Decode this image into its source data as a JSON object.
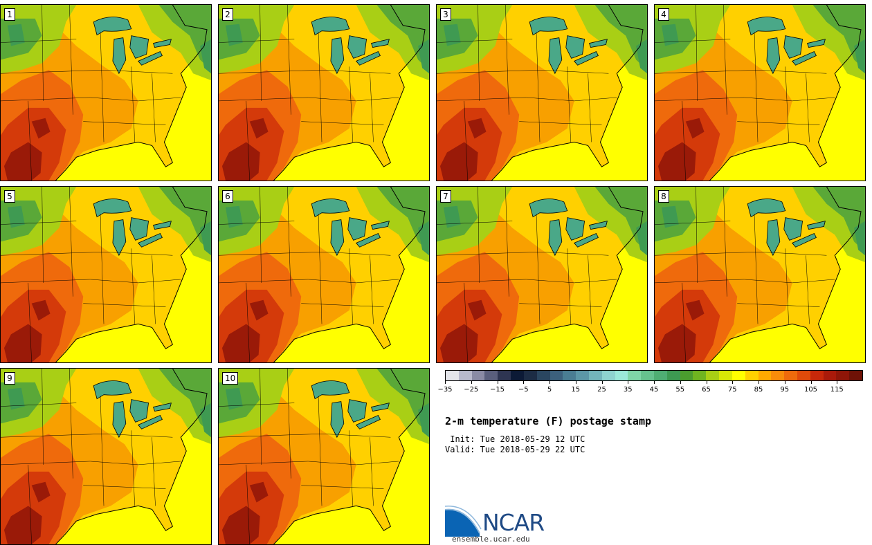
{
  "panels": [
    {
      "label": "1"
    },
    {
      "label": "2"
    },
    {
      "label": "3"
    },
    {
      "label": "4"
    },
    {
      "label": "5"
    },
    {
      "label": "6"
    },
    {
      "label": "7"
    },
    {
      "label": "8"
    },
    {
      "label": "9"
    },
    {
      "label": "10"
    }
  ],
  "colorbar": {
    "colors": [
      "#e4e5ea",
      "#b8b9cc",
      "#8a8ba5",
      "#5a5f7d",
      "#2e3552",
      "#0c1a36",
      "#1c2c45",
      "#2a4660",
      "#3c607d",
      "#4a7d93",
      "#5c97a7",
      "#73b5bb",
      "#8ed3cf",
      "#9be9d9",
      "#7fd6a8",
      "#66c28e",
      "#4fae73",
      "#3d9a52",
      "#4b9c2e",
      "#6fb420",
      "#a9cf15",
      "#d8e806",
      "#ffff00",
      "#ffd000",
      "#ffaa00",
      "#f88c0a",
      "#ef6a0c",
      "#e04a0a",
      "#c8280a",
      "#aa1a0a",
      "#8f1608",
      "#6e1206"
    ],
    "tick_labels": [
      "−35",
      "−25",
      "−15",
      "−5",
      "5",
      "15",
      "25",
      "35",
      "45",
      "55",
      "65",
      "75",
      "85",
      "95",
      "105",
      "115"
    ],
    "tick_indices": [
      0,
      2,
      4,
      6,
      8,
      10,
      12,
      14,
      16,
      18,
      20,
      22,
      24,
      26,
      28,
      30
    ]
  },
  "title": "2-m temperature (F) postage stamp",
  "init_line": " Init: Tue 2018-05-29 12 UTC",
  "valid_line": "Valid: Tue 2018-05-29 22 UTC",
  "logo_text": "NCAR",
  "site": "ensemble.ucar.edu",
  "map_colors": {
    "ocean": "#ffff00",
    "land_base": "#ffd000",
    "warm": "#f8a000",
    "hot": "#ef6a0c",
    "very_hot": "#d43a0a",
    "extreme": "#9a1a08",
    "cool": "#a9cf15",
    "cold": "#5aa838",
    "colder": "#3f9a52",
    "lake": "#4aa888",
    "line": "#000000"
  }
}
